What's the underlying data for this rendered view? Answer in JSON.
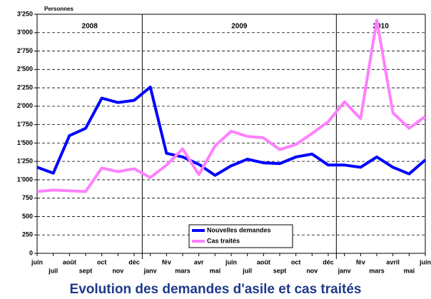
{
  "chart_data": {
    "type": "line",
    "title": "Evolution des demandes d'asile et cas traités",
    "y_axis_label": "Personnes",
    "year_labels": [
      "2008",
      "2009",
      "2010"
    ],
    "categories": [
      "juin",
      "juil",
      "août",
      "sept",
      "oct",
      "nov",
      "déc",
      "janv",
      "fév",
      "mars",
      "avr",
      "mai",
      "juin",
      "juil",
      "août",
      "sept",
      "oct",
      "nov",
      "déc",
      "janv",
      "fév",
      "mars",
      "avril",
      "mai",
      "juin"
    ],
    "series": [
      {
        "name": "Nouvelles demandes",
        "color": "#0000ff",
        "values": [
          1170,
          1090,
          1600,
          1700,
          2110,
          2050,
          2080,
          2260,
          1360,
          1310,
          1210,
          1060,
          1190,
          1280,
          1230,
          1220,
          1310,
          1350,
          1200,
          1200,
          1170,
          1310,
          1170,
          1080,
          1270
        ]
      },
      {
        "name": "Cas traités",
        "color": "#ff80ff",
        "values": [
          840,
          860,
          850,
          840,
          1160,
          1110,
          1150,
          1030,
          1200,
          1420,
          1070,
          1460,
          1660,
          1590,
          1570,
          1410,
          1480,
          1630,
          1790,
          2060,
          1830,
          3170,
          1910,
          1700,
          1860
        ]
      }
    ],
    "ylim": [
      0,
      3250
    ],
    "yticks": [
      0,
      250,
      500,
      750,
      {
        "value": 1000,
        "label": "1'000"
      },
      {
        "value": 1250,
        "label": "1'250"
      },
      {
        "value": 1500,
        "label": "1'500"
      },
      {
        "value": 1750,
        "label": "1'750"
      },
      {
        "value": 2000,
        "label": "2'000"
      },
      {
        "value": 2250,
        "label": "2'250"
      },
      {
        "value": 2500,
        "label": "2'500"
      },
      {
        "value": 2750,
        "label": "2'750"
      },
      {
        "value": 3000,
        "label": "3'000"
      },
      {
        "value": 3250,
        "label": "3'250"
      }
    ],
    "grid": true
  }
}
